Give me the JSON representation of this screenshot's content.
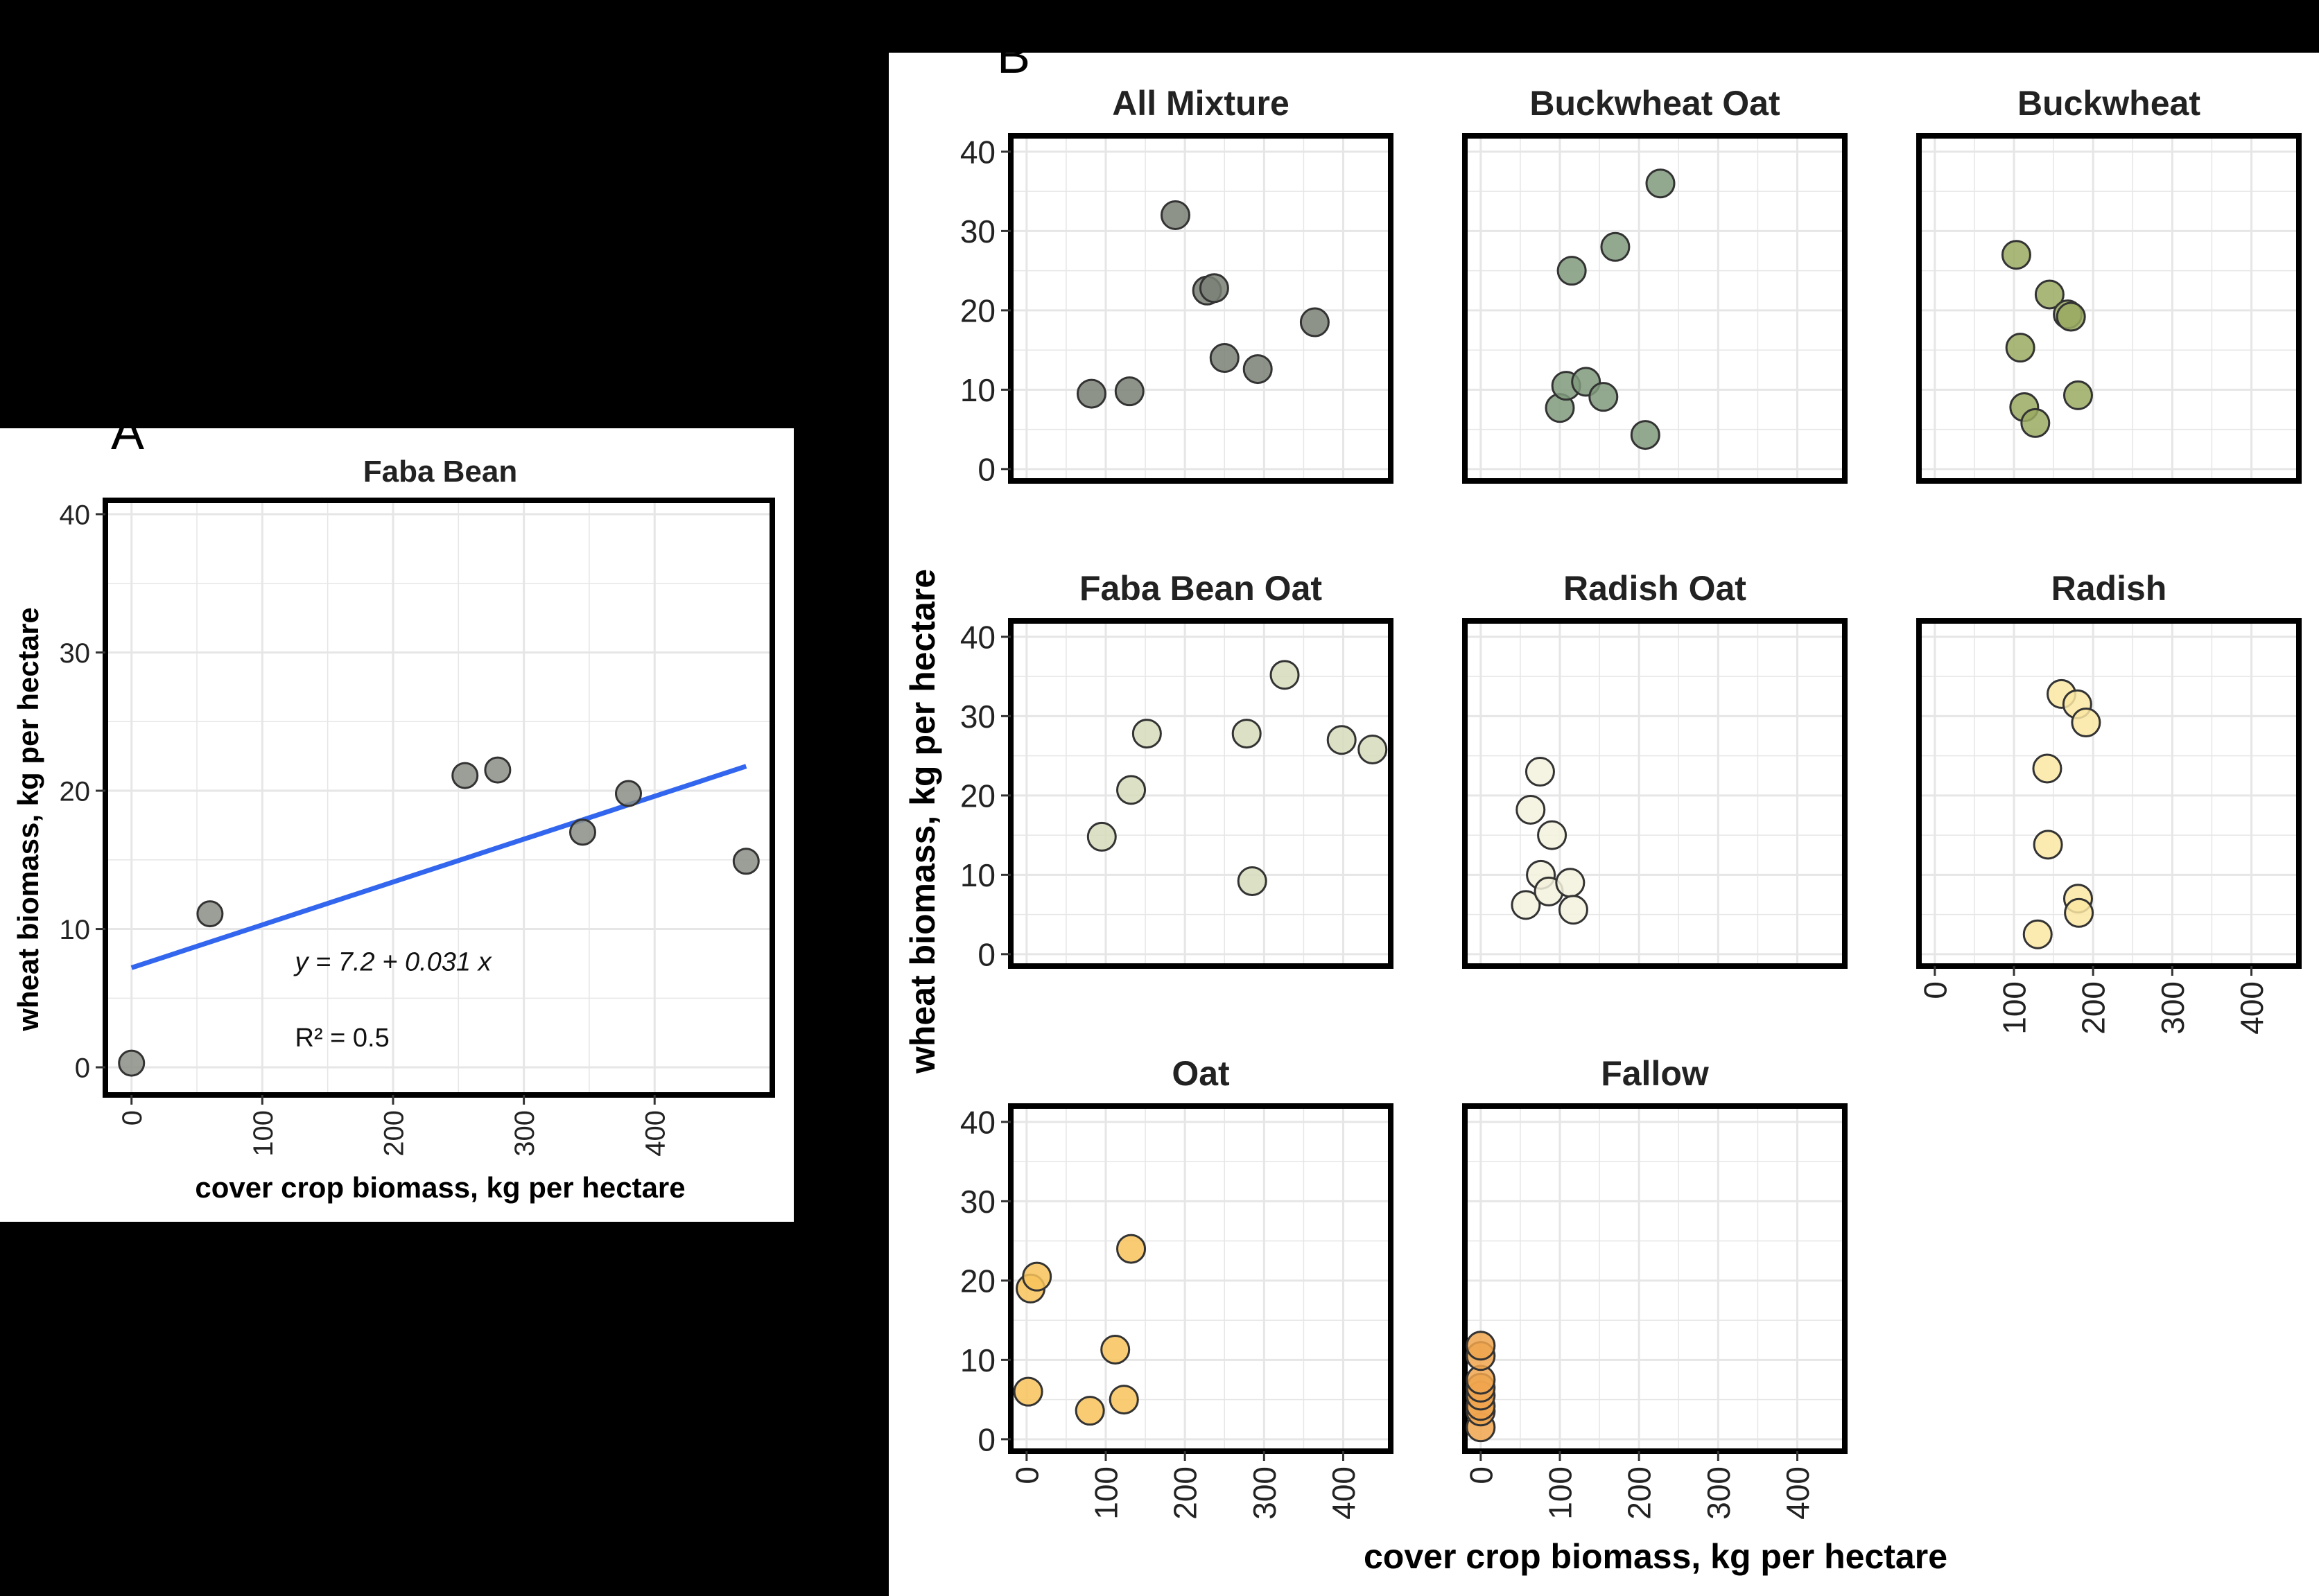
{
  "panel_a": {
    "letter": "A",
    "title": "Faba Bean",
    "xlabel": "cover crop biomass, kg per hectare",
    "ylabel": "wheat biomass, kg per hectare",
    "equation": "y = 7.2 + 0.031 x",
    "r2": "R² = 0.5"
  },
  "panel_b": {
    "letter": "B",
    "xlabel": "cover crop biomass, kg per hectare",
    "ylabel": "wheat biomass, kg per hectare"
  },
  "colors": {
    "All Mixture": "#7a8075",
    "Buckwheat Oat": "#7f9a7c",
    "Buckwheat": "#9aaa62",
    "Faba Bean Oat": "#d6dcbc",
    "Radish Oat": "#f3f1dc",
    "Radish": "#fbe8a3",
    "Oat": "#f8c35a",
    "Fallow": "#f0a54e",
    "Faba Bean": "#8a8e85",
    "fit_line": "#3366ee"
  },
  "chart_data": [
    {
      "type": "scatter",
      "title": "Faba Bean",
      "xlabel": "cover crop biomass, kg per hectare",
      "ylabel": "wheat biomass, kg per hectare",
      "xlim": [
        -20,
        490
      ],
      "ylim": [
        -2,
        41
      ],
      "xticks": [
        0,
        100,
        200,
        300,
        400
      ],
      "yticks": [
        0,
        10,
        20,
        30,
        40
      ],
      "grid": true,
      "points": [
        [
          0,
          0.3
        ],
        [
          60,
          11.1
        ],
        [
          255,
          21.1
        ],
        [
          280,
          21.5
        ],
        [
          345,
          17
        ],
        [
          380,
          19.8
        ],
        [
          470,
          14.9
        ]
      ],
      "fit": {
        "intercept": 7.2,
        "slope": 0.031,
        "x_range": [
          0,
          470
        ]
      },
      "annotations": [
        "y = 7.2 + 0.031 x",
        "R² = 0.5"
      ]
    },
    {
      "type": "scatter",
      "facets": true,
      "xlabel": "cover crop biomass, kg per hectare",
      "ylabel": "wheat biomass, kg per hectare",
      "xlim": [
        -20,
        460
      ],
      "ylim": [
        -1.5,
        42
      ],
      "xticks": [
        0,
        100,
        200,
        300,
        400
      ],
      "yticks": [
        0,
        10,
        20,
        30,
        40
      ],
      "grid": true,
      "panels": [
        {
          "name": "All Mixture",
          "points": [
            [
              82,
              9.5
            ],
            [
              130,
              9.8
            ],
            [
              188,
              32
            ],
            [
              228,
              22.5
            ],
            [
              237,
              22.8
            ],
            [
              250,
              14
            ],
            [
              292,
              12.6
            ],
            [
              364,
              18.5
            ]
          ]
        },
        {
          "name": "Buckwheat Oat",
          "points": [
            [
              100,
              7.7
            ],
            [
              108,
              10.5
            ],
            [
              115,
              25
            ],
            [
              133,
              11
            ],
            [
              155,
              9.1
            ],
            [
              170,
              28
            ],
            [
              208,
              4.3
            ],
            [
              227,
              36
            ]
          ]
        },
        {
          "name": "Buckwheat",
          "points": [
            [
              103,
              27
            ],
            [
              108,
              15.3
            ],
            [
              113,
              7.8
            ],
            [
              127,
              5.8
            ],
            [
              145,
              22
            ],
            [
              168,
              19.5
            ],
            [
              172,
              19.2
            ],
            [
              181,
              9.3
            ]
          ]
        },
        {
          "name": "Faba Bean Oat",
          "points": [
            [
              95,
              14.8
            ],
            [
              132,
              20.7
            ],
            [
              152,
              27.8
            ],
            [
              278,
              27.8
            ],
            [
              285,
              9.2
            ],
            [
              326,
              35.2
            ],
            [
              398,
              27
            ],
            [
              437,
              25.8
            ]
          ]
        },
        {
          "name": "Radish Oat",
          "points": [
            [
              57,
              6.2
            ],
            [
              63,
              18.2
            ],
            [
              75,
              23
            ],
            [
              76,
              10
            ],
            [
              86,
              7.9
            ],
            [
              90,
              15
            ],
            [
              113,
              9
            ],
            [
              117,
              5.6
            ]
          ]
        },
        {
          "name": "Radish",
          "points": [
            [
              130,
              2.5
            ],
            [
              142,
              23.4
            ],
            [
              143,
              13.8
            ],
            [
              160,
              32.8
            ],
            [
              180,
              31.5
            ],
            [
              181,
              7
            ],
            [
              182,
              5.2
            ],
            [
              191,
              29.2
            ]
          ]
        },
        {
          "name": "Oat",
          "points": [
            [
              2,
              6
            ],
            [
              5,
              19
            ],
            [
              13,
              20.5
            ],
            [
              80,
              3.6
            ],
            [
              112,
              11.3
            ],
            [
              123,
              5
            ],
            [
              132,
              24
            ]
          ]
        },
        {
          "name": "Fallow",
          "points": [
            [
              0,
              1.5
            ],
            [
              0,
              3.5
            ],
            [
              0,
              4.2
            ],
            [
              0,
              5.5
            ],
            [
              0,
              6.5
            ],
            [
              0,
              7.5
            ],
            [
              0,
              10.5
            ],
            [
              0,
              11.8
            ]
          ]
        }
      ]
    }
  ]
}
